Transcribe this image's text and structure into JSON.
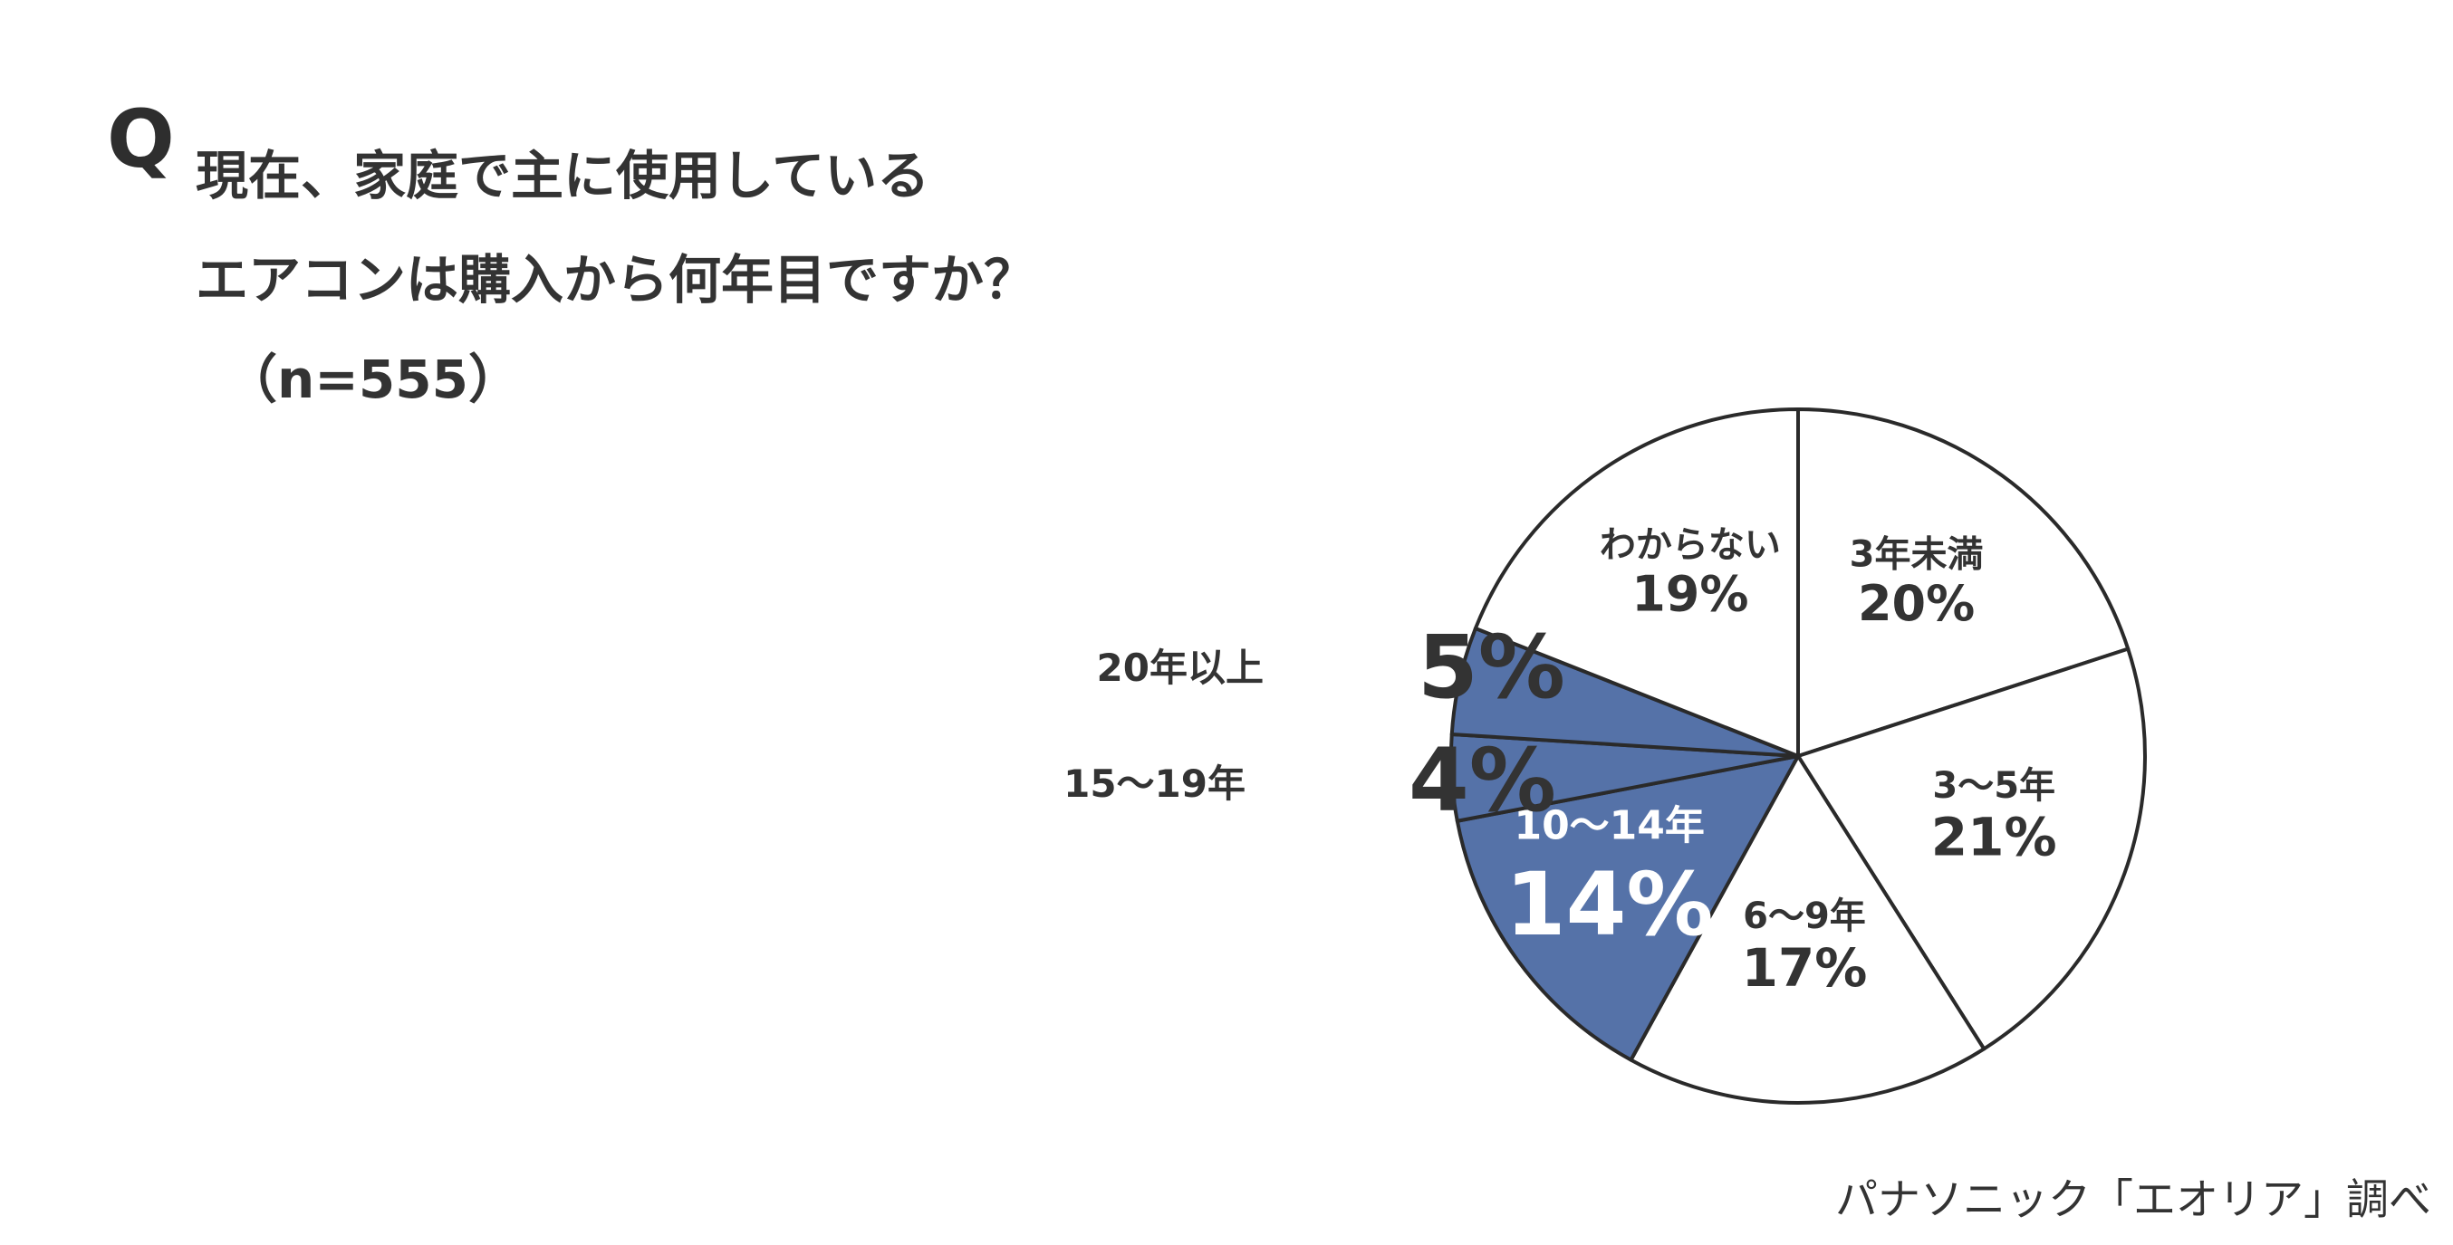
{
  "question": {
    "mark": "Q",
    "line1": "現在、家庭で主に使用している",
    "line2": "エアコンは購入から何年目ですか？",
    "sample": "（n=555）"
  },
  "source": "パナソニック「エオリア」調べ",
  "chart_data": {
    "type": "pie",
    "start_angle_deg": 0,
    "direction": "clockwise",
    "slices": [
      {
        "label": "3年未満",
        "value": 20,
        "display": "20%",
        "fill": "#ffffff",
        "text_color": "#333333"
      },
      {
        "label": "3〜5年",
        "value": 21,
        "display": "21%",
        "fill": "#ffffff",
        "text_color": "#333333"
      },
      {
        "label": "6〜9年",
        "value": 17,
        "display": "17%",
        "fill": "#ffffff",
        "text_color": "#333333"
      },
      {
        "label": "10〜14年",
        "value": 14,
        "display": "14%",
        "fill": "#5572a8",
        "text_color": "#ffffff"
      },
      {
        "label": "15〜19年",
        "value": 4,
        "display": "4%",
        "fill": "#5572a8",
        "text_color": "#333333"
      },
      {
        "label": "20年以上",
        "value": 5,
        "display": "5%",
        "fill": "#5572a8",
        "text_color": "#333333"
      },
      {
        "label": "わからない",
        "value": 19,
        "display": "19%",
        "fill": "#ffffff",
        "text_color": "#333333"
      }
    ],
    "outline_color": "#2a2a2a",
    "highlight_color": "#5572a8"
  }
}
